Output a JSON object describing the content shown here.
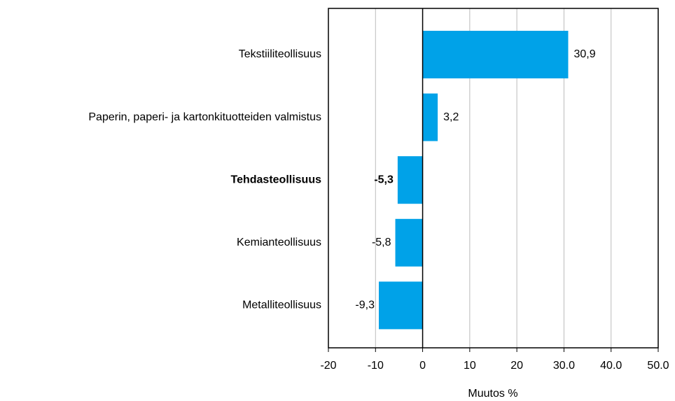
{
  "chart_data": {
    "type": "barh",
    "categories": [
      "Tekstiiliteollisuus",
      "Paperin, paperi- ja kartonkituotteiden valmistus",
      "Tehdasteollisuus",
      "Kemianteollisuus",
      "Metalliteollisuus"
    ],
    "values": [
      30.9,
      3.2,
      -5.3,
      -5.8,
      -9.3
    ],
    "value_labels": [
      "30,9",
      "3,2",
      "-5,3",
      "-5,8",
      "-9,3"
    ],
    "highlight": "Tehdasteollisuus",
    "color": "#00a2e8",
    "xlabel": "Muutos %",
    "xlim": [
      -20,
      50
    ],
    "xticks": [
      -20,
      -10,
      0,
      10,
      20,
      {
        "value": 30,
        "label": "30.0"
      },
      {
        "value": 40,
        "label": "40.0"
      },
      {
        "value": 50,
        "label": "50.0"
      }
    ],
    "grid": true
  }
}
